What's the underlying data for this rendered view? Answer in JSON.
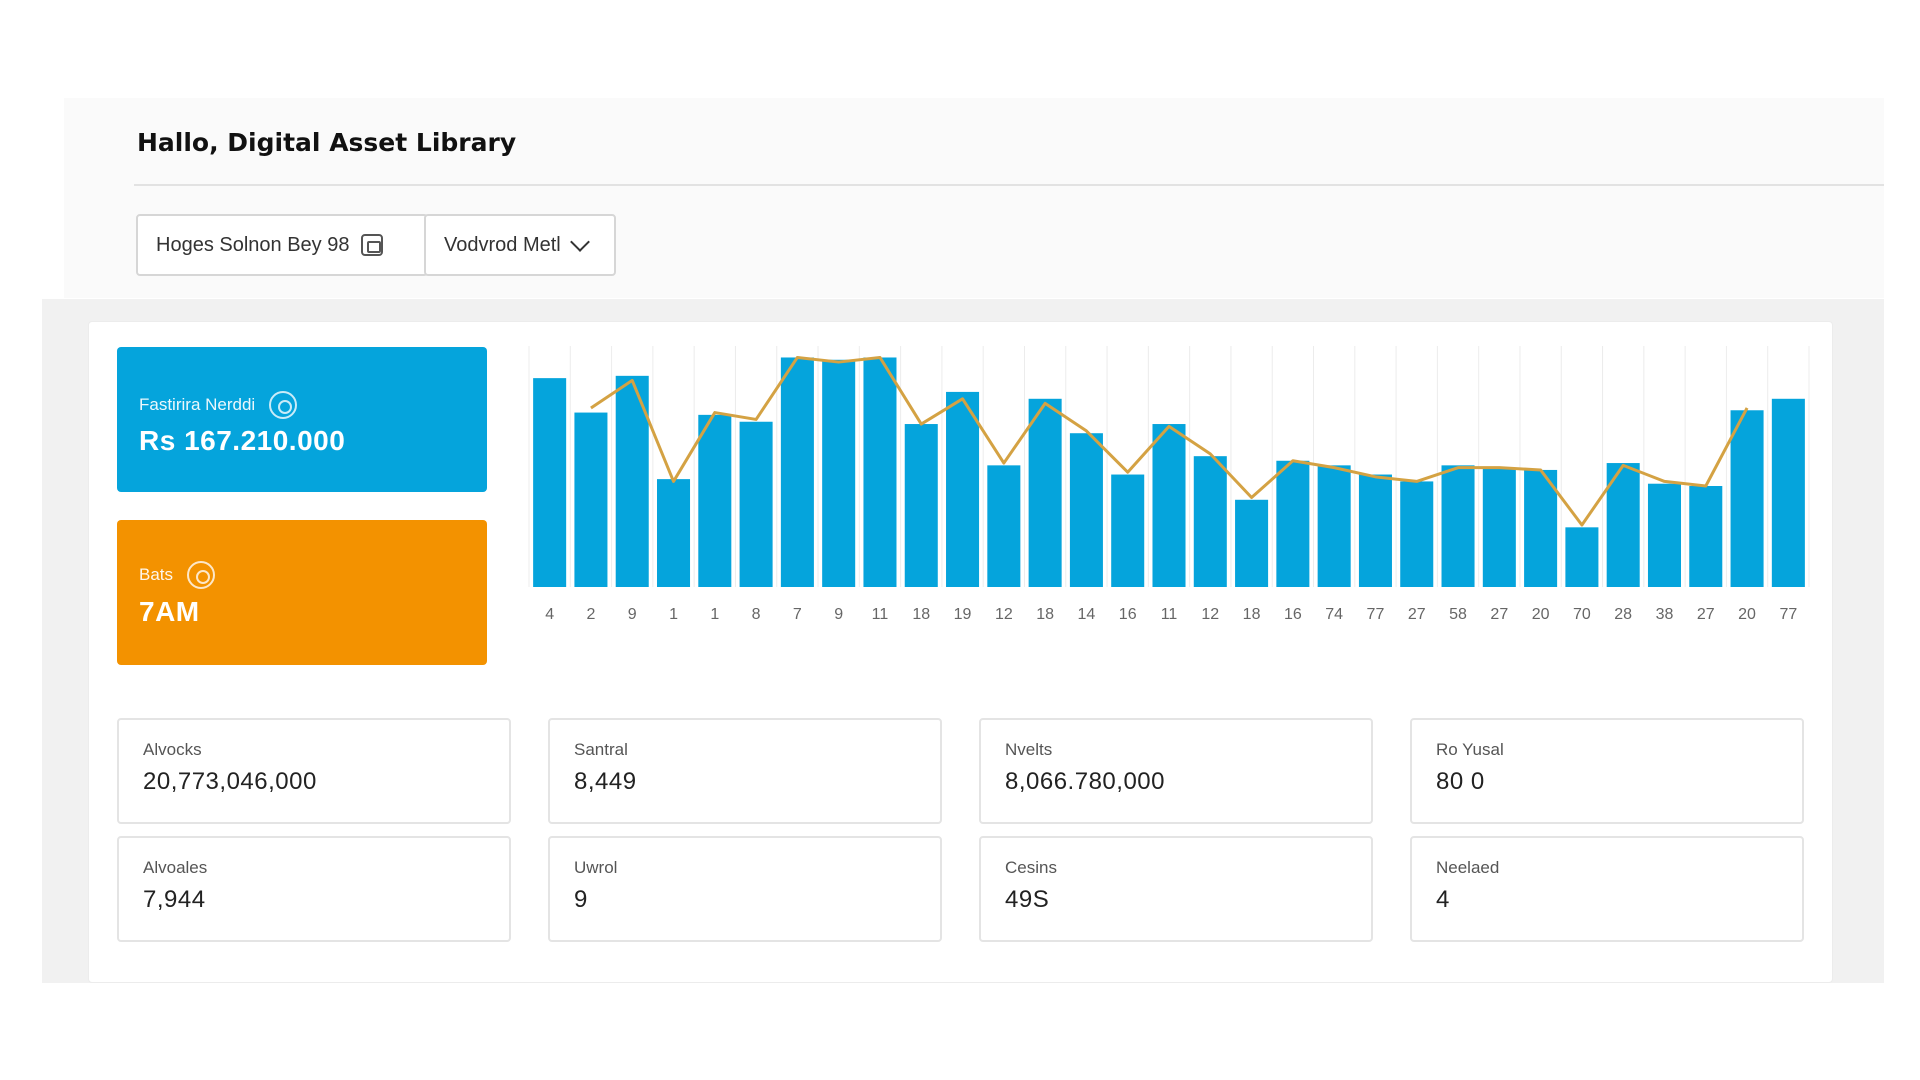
{
  "header": {
    "greeting": "Hallo, Digital Asset Library"
  },
  "filters": {
    "date_range": "Hoges Solnon Bey 98",
    "view_select": "Vodvrod Metl"
  },
  "kpis": {
    "primary": {
      "label": "Fastirira Nerddi",
      "value": "Rs 167.210.000",
      "color": "#05a4dc"
    },
    "secondary": {
      "label": "Bats",
      "value": "7AM",
      "color": "#f39200"
    }
  },
  "stats": [
    {
      "label": "Alvocks",
      "value": "20,773,046,000"
    },
    {
      "label": "Santral",
      "value": "8,449"
    },
    {
      "label": "Nvelts",
      "value": "8,066.780,000"
    },
    {
      "label": "Ro Yusal",
      "value": "80 0"
    },
    {
      "label": "Alvoales",
      "value": "7,944"
    },
    {
      "label": "Uwrol",
      "value": "9"
    },
    {
      "label": "Cesins",
      "value": "49S"
    },
    {
      "label": "Neelaed",
      "value": "4"
    }
  ],
  "chart_data": {
    "type": "bar",
    "categories": [
      "4",
      "2",
      "9",
      "1",
      "1",
      "8",
      "7",
      "9",
      "11",
      "18",
      "19",
      "12",
      "18",
      "14",
      "16",
      "11",
      "12",
      "18",
      "16",
      "74",
      "77",
      "27",
      "58",
      "27",
      "20",
      "70",
      "28",
      "38",
      "27",
      "20",
      "77"
    ],
    "series": [
      {
        "values": [
          91,
          76,
          92,
          47,
          75,
          72,
          100,
          99,
          100,
          71,
          85,
          53,
          82,
          67,
          49,
          71,
          57,
          38,
          55,
          53,
          49,
          46,
          53,
          52,
          51,
          26,
          54,
          45,
          44,
          77,
          82
        ],
        "color": "#05a4dc"
      },
      {
        "values": [
          null,
          78,
          90,
          46,
          76,
          73,
          100,
          98,
          100,
          71,
          82,
          54,
          80,
          68,
          50,
          70,
          58,
          39,
          55,
          52,
          48,
          46,
          52,
          52,
          51,
          27,
          53,
          46,
          44,
          78,
          null
        ],
        "color": "#d4a243"
      }
    ],
    "ylim": [
      0,
      105
    ],
    "grid": true,
    "legend": "none"
  }
}
